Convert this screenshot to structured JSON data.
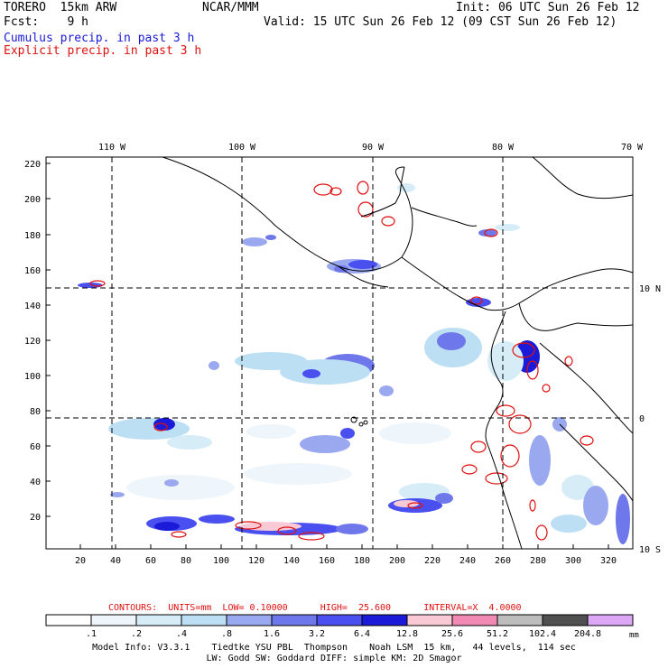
{
  "header": {
    "model": "TORERO  15km ARW",
    "org": "NCAR/MMM",
    "init": "Init: 06 UTC Sun 26 Feb 12",
    "fcst": "Fcst:    9 h",
    "valid": "Valid: 15 UTC Sun 26 Feb 12 (09 CST Sun 26 Feb 12)",
    "field1": "Cumulus precip. in past 3 h",
    "field2": "Explicit precip. in past 3 h"
  },
  "top_axis": [
    "110 W",
    "100 W",
    "90 W",
    "80 W",
    "70 W"
  ],
  "right_axis": [
    "10 N",
    "0",
    "10 S"
  ],
  "left_axis": [
    "220",
    "200",
    "180",
    "160",
    "140",
    "120",
    "100",
    "80",
    "60",
    "40",
    "20"
  ],
  "bottom_axis": [
    "20",
    "40",
    "60",
    "80",
    "100",
    "120",
    "140",
    "160",
    "180",
    "200",
    "220",
    "240",
    "260",
    "280",
    "300",
    "320"
  ],
  "contours": {
    "label": "CONTOURS:  UNITS=mm  LOW= 0.10000      HIGH=  25.600      INTERVAL=X  4.0000"
  },
  "colorbar": {
    "ticks": [
      ".1",
      ".2",
      ".4",
      ".8",
      "1.6",
      "3.2",
      "6.4",
      "12.8",
      "25.6",
      "51.2",
      "102.4",
      "204.8"
    ],
    "unit": "mm",
    "colors": [
      "#ffffff",
      "#eef6fb",
      "#d6ecf7",
      "#bcdff4",
      "#9aa8f0",
      "#6f78ea",
      "#4a4ff0",
      "#1a1ad8",
      "#f9c9d6",
      "#f08ab4",
      "#bdbdbd",
      "#505050",
      "#dca8f5"
    ]
  },
  "footer": {
    "line1": "Model Info: V3.3.1    Tiedtke YSU PBL  Thompson    Noah LSM  15 km,   44 levels,  114 sec",
    "line2": "LW: Godd SW: Goddard DIFF: simple KM: 2D Smagor"
  }
}
